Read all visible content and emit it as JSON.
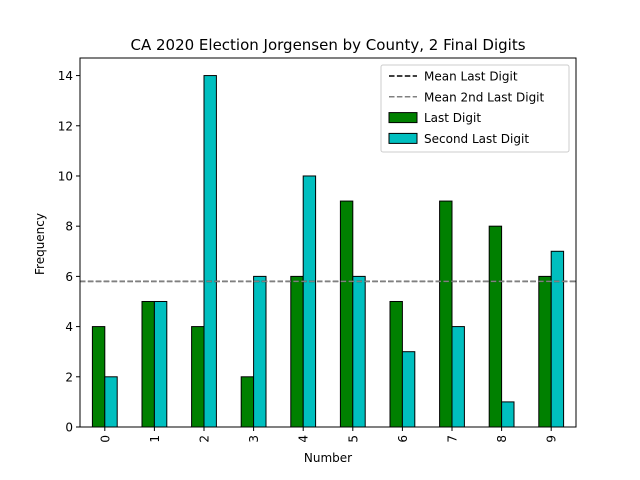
{
  "chart_data": {
    "type": "bar",
    "title": "CA 2020 Election Jorgensen by County, 2 Final Digits",
    "xlabel": "Number",
    "ylabel": "Frequency",
    "categories": [
      "0",
      "1",
      "2",
      "3",
      "4",
      "5",
      "6",
      "7",
      "8",
      "9"
    ],
    "series": [
      {
        "name": "Last Digit",
        "color": "#008000",
        "values": [
          4,
          5,
          4,
          2,
          6,
          9,
          5,
          9,
          8,
          6
        ]
      },
      {
        "name": "Second Last Digit",
        "color": "#00bfbf",
        "values": [
          2,
          5,
          14,
          6,
          10,
          6,
          3,
          4,
          1,
          7
        ]
      }
    ],
    "reference_lines": [
      {
        "name": "Mean Last Digit",
        "value": 5.8,
        "color": "#000000",
        "style": "dashed"
      },
      {
        "name": "Mean 2nd Last Digit",
        "value": 5.8,
        "color": "#808080",
        "style": "dashed"
      }
    ],
    "ylim": [
      0,
      14.7
    ],
    "yticks": [
      0,
      2,
      4,
      6,
      8,
      10,
      12,
      14
    ],
    "x_tick_rotation": 90,
    "grid": false,
    "legend_position": "top-right"
  }
}
